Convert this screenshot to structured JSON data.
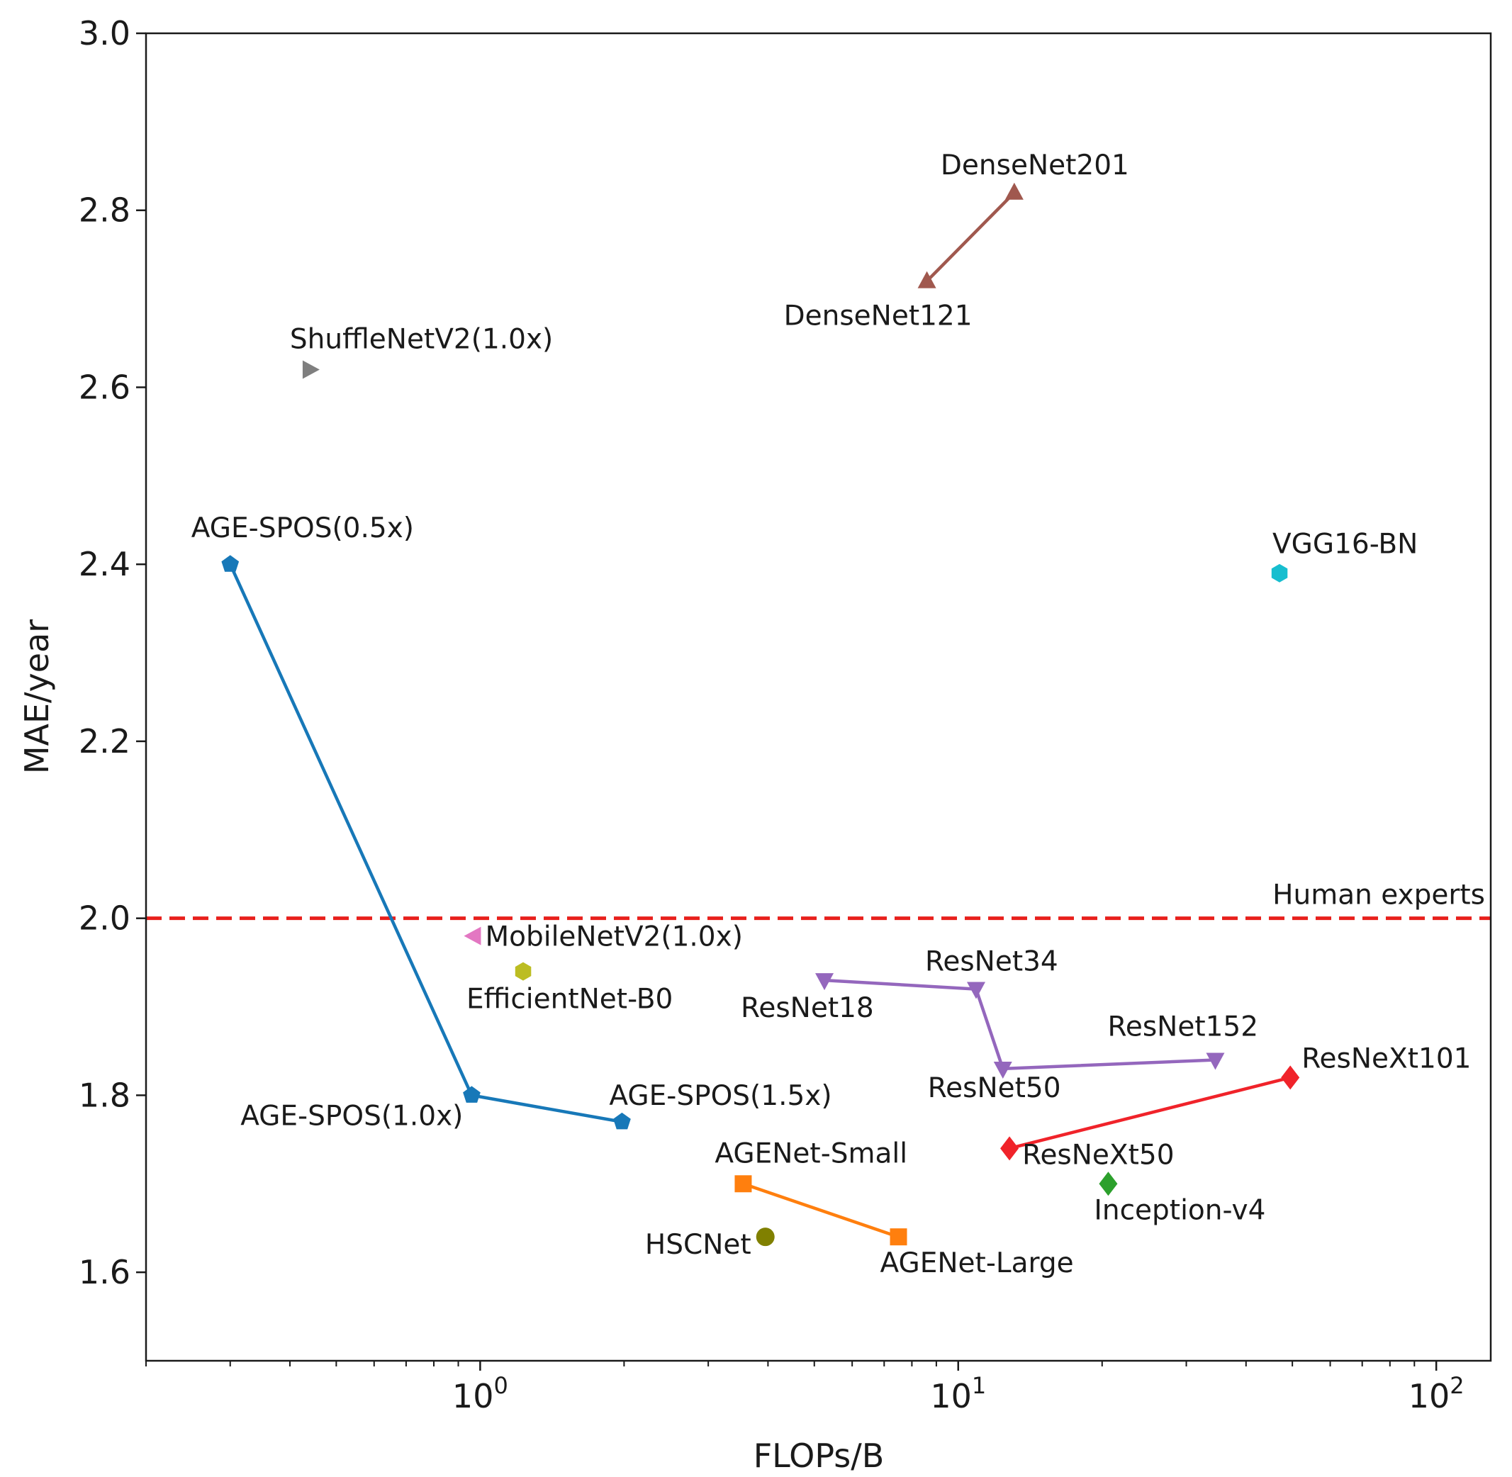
{
  "chart_data": {
    "type": "scatter",
    "xscale": "log",
    "xlabel": "FLOPs/B",
    "ylabel": "MAE/year",
    "xlim": [
      0.2,
      130
    ],
    "ylim": [
      1.5,
      3.0
    ],
    "yticks": [
      "1.6",
      "1.8",
      "2.0",
      "2.2",
      "2.4",
      "2.6",
      "2.8",
      "3.0"
    ],
    "xticks": [
      {
        "value": 1,
        "base": "10",
        "exp": "0"
      },
      {
        "value": 10,
        "base": "10",
        "exp": "1"
      },
      {
        "value": 100,
        "base": "10",
        "exp": "2"
      }
    ],
    "reference_line": {
      "y": 2.0,
      "label": "Human experts",
      "color": "#e8201c"
    },
    "groups": [
      {
        "name": "AGE-SPOS",
        "color": "#1778b8",
        "marker": "pentagon",
        "connected": true,
        "points": [
          {
            "label": "AGE-SPOS(0.5x)",
            "x": 0.3,
            "y": 2.4
          },
          {
            "label": "AGE-SPOS(1.0x)",
            "x": 0.96,
            "y": 1.8
          },
          {
            "label": "AGE-SPOS(1.5x)",
            "x": 1.98,
            "y": 1.77
          }
        ]
      },
      {
        "name": "ShuffleNetV2",
        "color": "#7f7f7f",
        "marker": "triangle-right",
        "connected": false,
        "points": [
          {
            "label": "ShuffleNetV2(1.0x)",
            "x": 0.44,
            "y": 2.62
          }
        ]
      },
      {
        "name": "MobileNetV2",
        "color": "#e377c2",
        "marker": "triangle-left",
        "connected": false,
        "points": [
          {
            "label": "MobileNetV2(1.0x)",
            "x": 0.97,
            "y": 1.98
          }
        ]
      },
      {
        "name": "EfficientNet",
        "color": "#bcbd22",
        "marker": "hexagon",
        "connected": false,
        "points": [
          {
            "label": "EfficientNet-B0",
            "x": 1.23,
            "y": 1.94
          }
        ]
      },
      {
        "name": "DenseNet",
        "color": "#a0584e",
        "marker": "triangle-up",
        "connected": true,
        "points": [
          {
            "label": "DenseNet121",
            "x": 8.6,
            "y": 2.72
          },
          {
            "label": "DenseNet201",
            "x": 13.1,
            "y": 2.82
          }
        ]
      },
      {
        "name": "VGG",
        "color": "#17becf",
        "marker": "hexagon",
        "connected": false,
        "points": [
          {
            "label": "VGG16-BN",
            "x": 47.0,
            "y": 2.39
          }
        ]
      },
      {
        "name": "ResNet",
        "color": "#9467bd",
        "marker": "triangle-down",
        "connected": true,
        "points": [
          {
            "label": "ResNet18",
            "x": 5.25,
            "y": 1.93
          },
          {
            "label": "ResNet34",
            "x": 10.9,
            "y": 1.92
          },
          {
            "label": "ResNet50",
            "x": 12.4,
            "y": 1.83
          },
          {
            "label": "ResNet152",
            "x": 34.5,
            "y": 1.84
          }
        ]
      },
      {
        "name": "ResNeXt",
        "color": "#f0232a",
        "marker": "diamond",
        "connected": true,
        "points": [
          {
            "label": "ResNeXt50",
            "x": 12.8,
            "y": 1.74
          },
          {
            "label": "ResNeXt101",
            "x": 49.5,
            "y": 1.82
          }
        ]
      },
      {
        "name": "Inception",
        "color": "#2ca02c",
        "marker": "diamond",
        "connected": false,
        "points": [
          {
            "label": "Inception-v4",
            "x": 20.6,
            "y": 1.7
          }
        ]
      },
      {
        "name": "AGENet",
        "color": "#ff7f0e",
        "marker": "square",
        "connected": true,
        "points": [
          {
            "label": "AGENet-Small",
            "x": 3.55,
            "y": 1.7
          },
          {
            "label": "AGENet-Large",
            "x": 7.5,
            "y": 1.64
          }
        ]
      },
      {
        "name": "HSCNet",
        "color": "#808000",
        "marker": "circle",
        "connected": false,
        "points": [
          {
            "label": "HSCNet",
            "x": 3.95,
            "y": 1.64
          }
        ]
      }
    ]
  }
}
